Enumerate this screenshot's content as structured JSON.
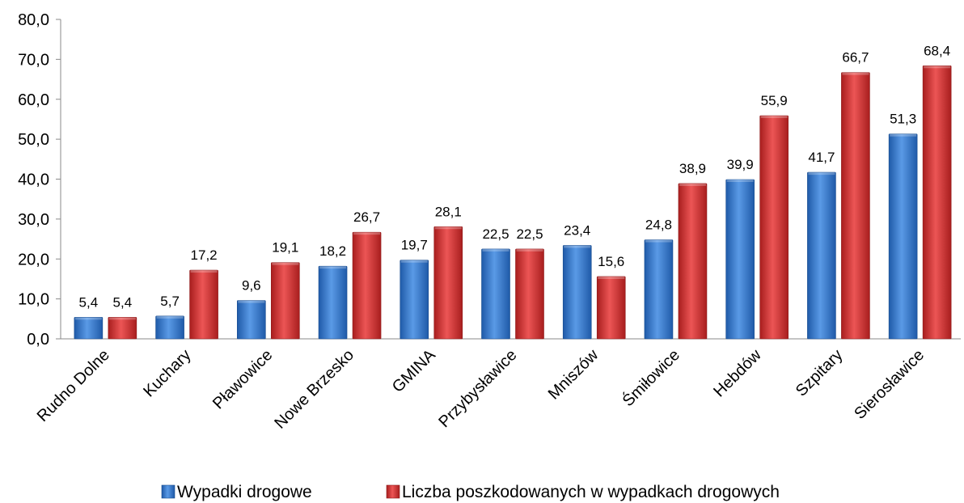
{
  "chart_data": {
    "type": "bar",
    "categories": [
      "Rudno Dolne",
      "Kuchary",
      "Pławowice",
      "Nowe Brzesko",
      "GMINA",
      "Przybysławice",
      "Mniszów",
      "Śmiłowice",
      "Hebdów",
      "Szpitary",
      "Sierosławice"
    ],
    "series": [
      {
        "name": "Wypadki drogowe",
        "values": [
          5.4,
          5.7,
          9.6,
          18.2,
          19.7,
          22.5,
          23.4,
          24.8,
          39.9,
          41.7,
          51.3
        ],
        "color": "#3b7fd0",
        "labels": [
          "5,4",
          "5,7",
          "9,6",
          "18,2",
          "19,7",
          "22,5",
          "23,4",
          "24,8",
          "39,9",
          "41,7",
          "51,3"
        ]
      },
      {
        "name": "Liczba poszkodowanych w wypadkach drogowych",
        "values": [
          5.4,
          17.2,
          19.1,
          26.7,
          28.1,
          22.5,
          15.6,
          38.9,
          55.9,
          66.7,
          68.4
        ],
        "color": "#d03030",
        "labels": [
          "5,4",
          "17,2",
          "19,1",
          "26,7",
          "28,1",
          "22,5",
          "15,6",
          "38,9",
          "55,9",
          "66,7",
          "68,4"
        ]
      }
    ],
    "ylim": [
      0,
      80
    ],
    "yticks": [
      "0,0",
      "10,0",
      "20,0",
      "30,0",
      "40,0",
      "50,0",
      "60,0",
      "70,0",
      "80,0"
    ],
    "grid": false,
    "legend": "bottom",
    "title": "",
    "xlabel": "",
    "ylabel": ""
  }
}
